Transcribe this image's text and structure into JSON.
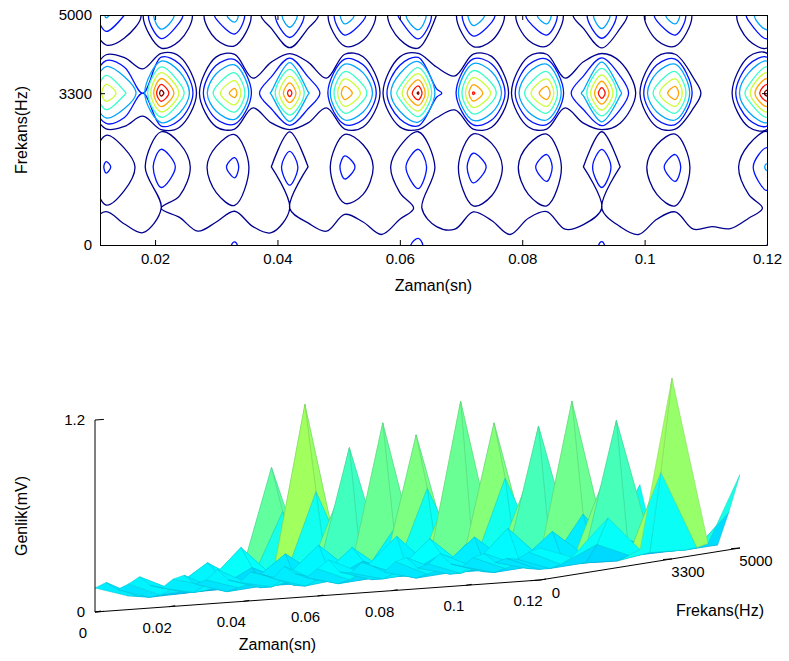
{
  "chart_data": [
    {
      "type": "contour",
      "x_label": "Zaman(sn)",
      "y_label": "Frekans(Hz)",
      "x": [
        0,
        0.003,
        0.006,
        0.009,
        0.012,
        0.015,
        0.018,
        0.021,
        0.024,
        0.027,
        0.03,
        0.033,
        0.036,
        0.039,
        0.042,
        0.045,
        0.048,
        0.051,
        0.054,
        0.057,
        0.06,
        0.063,
        0.066,
        0.069,
        0.072,
        0.075,
        0.078,
        0.081,
        0.084,
        0.087,
        0.09,
        0.093,
        0.096,
        0.099,
        0.102,
        0.105,
        0.108,
        0.111,
        0.114,
        0.117,
        0.12
      ],
      "y": [
        0,
        800,
        1700,
        2500,
        3300,
        4200,
        5000
      ],
      "z": [
        [
          0.15,
          0.18,
          0.13,
          0.16,
          0.2,
          0.14,
          0.12,
          0.17,
          0.19,
          0.13,
          0.15,
          0.21,
          0.14,
          0.12,
          0.18,
          0.16,
          0.13,
          0.2,
          0.15,
          0.12,
          0.17,
          0.22,
          0.14,
          0.13,
          0.19,
          0.16,
          0.12,
          0.18,
          0.2,
          0.13,
          0.15,
          0.21,
          0.14,
          0.12,
          0.17,
          0.19,
          0.13,
          0.15,
          0.14,
          0.18,
          0.2
        ],
        [
          0.07,
          0.06,
          0.05,
          0.06,
          0.09,
          0.07,
          0.06,
          0.1,
          0.07,
          0.05,
          0.07,
          0.09,
          0.06,
          0.06,
          0.1,
          0.06,
          0.05,
          0.08,
          0.07,
          0.05,
          0.07,
          0.11,
          0.06,
          0.06,
          0.09,
          0.07,
          0.05,
          0.07,
          0.09,
          0.06,
          0.06,
          0.1,
          0.06,
          0.05,
          0.07,
          0.09,
          0.06,
          0.05,
          0.05,
          0.07,
          0.11
        ],
        [
          0.04,
          0.04,
          0.04,
          0.06,
          0.22,
          0.14,
          0.07,
          0.3,
          0.17,
          0.05,
          0.15,
          0.24,
          0.06,
          0.1,
          0.28,
          0.1,
          0.06,
          0.25,
          0.16,
          0.05,
          0.15,
          0.3,
          0.08,
          0.06,
          0.27,
          0.17,
          0.05,
          0.16,
          0.26,
          0.06,
          0.1,
          0.3,
          0.1,
          0.05,
          0.16,
          0.26,
          0.06,
          0.05,
          0.05,
          0.16,
          0.32
        ],
        [
          0.03,
          0.03,
          0.03,
          0.04,
          0.08,
          0.06,
          0.04,
          0.09,
          0.06,
          0.03,
          0.06,
          0.08,
          0.04,
          0.05,
          0.09,
          0.05,
          0.04,
          0.08,
          0.06,
          0.03,
          0.06,
          0.09,
          0.04,
          0.04,
          0.08,
          0.06,
          0.03,
          0.06,
          0.08,
          0.04,
          0.05,
          0.09,
          0.05,
          0.03,
          0.06,
          0.08,
          0.04,
          0.03,
          0.03,
          0.06,
          0.09
        ],
        [
          0.03,
          0.03,
          0.04,
          0.13,
          0.75,
          0.47,
          0.2,
          1.13,
          0.58,
          0.06,
          0.53,
          0.84,
          0.14,
          0.31,
          0.98,
          0.31,
          0.14,
          0.89,
          0.55,
          0.06,
          0.53,
          1.08,
          0.22,
          0.15,
          0.93,
          0.58,
          0.06,
          0.55,
          0.89,
          0.14,
          0.32,
          1.03,
          0.32,
          0.06,
          0.55,
          0.89,
          0.14,
          0.04,
          0.05,
          0.55,
          1.13
        ],
        [
          0.03,
          0.03,
          0.03,
          0.03,
          0.05,
          0.04,
          0.03,
          0.06,
          0.04,
          0.03,
          0.04,
          0.05,
          0.03,
          0.03,
          0.06,
          0.03,
          0.03,
          0.05,
          0.04,
          0.03,
          0.04,
          0.06,
          0.03,
          0.03,
          0.05,
          0.04,
          0.03,
          0.04,
          0.05,
          0.03,
          0.03,
          0.06,
          0.03,
          0.03,
          0.04,
          0.05,
          0.03,
          0.03,
          0.03,
          0.04,
          0.06
        ],
        [
          0.03,
          0.03,
          0.03,
          0.06,
          0.32,
          0.2,
          0.09,
          0.45,
          0.24,
          0.04,
          0.22,
          0.36,
          0.07,
          0.14,
          0.42,
          0.14,
          0.07,
          0.38,
          0.23,
          0.04,
          0.22,
          0.46,
          0.1,
          0.07,
          0.4,
          0.24,
          0.04,
          0.23,
          0.38,
          0.07,
          0.14,
          0.44,
          0.14,
          0.04,
          0.23,
          0.38,
          0.07,
          0.03,
          0.03,
          0.23,
          0.46
        ]
      ],
      "levels": [
        0.1,
        0.2,
        0.3,
        0.45,
        0.6,
        0.75,
        0.9,
        1.05
      ],
      "xlim": [
        0.011,
        0.12
      ],
      "xticks": [
        0.02,
        0.04,
        0.06,
        0.08,
        0.1,
        0.12
      ],
      "ylim": [
        0,
        5000
      ],
      "yticks": [
        0,
        3300,
        5000
      ]
    },
    {
      "type": "surface",
      "x_label": "Zaman(sn)",
      "y_label": "Frekans(Hz)",
      "z_label": "Genlik(mV)",
      "x": [
        0,
        0.003,
        0.006,
        0.009,
        0.012,
        0.015,
        0.018,
        0.021,
        0.024,
        0.027,
        0.03,
        0.033,
        0.036,
        0.039,
        0.042,
        0.045,
        0.048,
        0.051,
        0.054,
        0.057,
        0.06,
        0.063,
        0.066,
        0.069,
        0.072,
        0.075,
        0.078,
        0.081,
        0.084,
        0.087,
        0.09,
        0.093,
        0.096,
        0.099,
        0.102,
        0.105,
        0.108,
        0.111,
        0.114,
        0.117,
        0.12
      ],
      "y": [
        0,
        800,
        1700,
        2500,
        3300,
        4200,
        5000
      ],
      "z": [
        [
          0.15,
          0.18,
          0.13,
          0.16,
          0.2,
          0.14,
          0.12,
          0.17,
          0.19,
          0.13,
          0.15,
          0.21,
          0.14,
          0.12,
          0.18,
          0.16,
          0.13,
          0.2,
          0.15,
          0.12,
          0.17,
          0.22,
          0.14,
          0.13,
          0.19,
          0.16,
          0.12,
          0.18,
          0.2,
          0.13,
          0.15,
          0.21,
          0.14,
          0.12,
          0.17,
          0.19,
          0.13,
          0.15,
          0.14,
          0.18,
          0.2
        ],
        [
          0.07,
          0.06,
          0.05,
          0.06,
          0.09,
          0.07,
          0.06,
          0.1,
          0.07,
          0.05,
          0.07,
          0.09,
          0.06,
          0.06,
          0.1,
          0.06,
          0.05,
          0.08,
          0.07,
          0.05,
          0.07,
          0.11,
          0.06,
          0.06,
          0.09,
          0.07,
          0.05,
          0.07,
          0.09,
          0.06,
          0.06,
          0.1,
          0.06,
          0.05,
          0.07,
          0.09,
          0.06,
          0.05,
          0.05,
          0.07,
          0.11
        ],
        [
          0.04,
          0.04,
          0.04,
          0.06,
          0.22,
          0.14,
          0.07,
          0.3,
          0.17,
          0.05,
          0.15,
          0.24,
          0.06,
          0.1,
          0.28,
          0.1,
          0.06,
          0.25,
          0.16,
          0.05,
          0.15,
          0.3,
          0.08,
          0.06,
          0.27,
          0.17,
          0.05,
          0.16,
          0.26,
          0.06,
          0.1,
          0.3,
          0.1,
          0.05,
          0.16,
          0.26,
          0.06,
          0.05,
          0.05,
          0.16,
          0.32
        ],
        [
          0.03,
          0.03,
          0.03,
          0.04,
          0.08,
          0.06,
          0.04,
          0.09,
          0.06,
          0.03,
          0.06,
          0.08,
          0.04,
          0.05,
          0.09,
          0.05,
          0.04,
          0.08,
          0.06,
          0.03,
          0.06,
          0.09,
          0.04,
          0.04,
          0.08,
          0.06,
          0.03,
          0.06,
          0.08,
          0.04,
          0.05,
          0.09,
          0.05,
          0.03,
          0.06,
          0.08,
          0.04,
          0.03,
          0.03,
          0.06,
          0.09
        ],
        [
          0.03,
          0.03,
          0.04,
          0.13,
          0.75,
          0.47,
          0.2,
          1.13,
          0.58,
          0.06,
          0.53,
          0.84,
          0.14,
          0.31,
          0.98,
          0.31,
          0.14,
          0.89,
          0.55,
          0.06,
          0.53,
          1.08,
          0.22,
          0.15,
          0.93,
          0.58,
          0.06,
          0.55,
          0.89,
          0.14,
          0.32,
          1.03,
          0.32,
          0.06,
          0.55,
          0.89,
          0.14,
          0.04,
          0.05,
          0.55,
          1.13
        ],
        [
          0.03,
          0.03,
          0.03,
          0.03,
          0.05,
          0.04,
          0.03,
          0.06,
          0.04,
          0.03,
          0.04,
          0.05,
          0.03,
          0.03,
          0.06,
          0.03,
          0.03,
          0.05,
          0.04,
          0.03,
          0.04,
          0.06,
          0.03,
          0.03,
          0.05,
          0.04,
          0.03,
          0.04,
          0.05,
          0.03,
          0.03,
          0.06,
          0.03,
          0.03,
          0.04,
          0.05,
          0.03,
          0.03,
          0.03,
          0.04,
          0.06
        ],
        [
          0.03,
          0.03,
          0.03,
          0.06,
          0.32,
          0.2,
          0.09,
          0.45,
          0.24,
          0.04,
          0.22,
          0.36,
          0.07,
          0.14,
          0.42,
          0.14,
          0.07,
          0.38,
          0.23,
          0.04,
          0.22,
          0.46,
          0.1,
          0.07,
          0.4,
          0.24,
          0.04,
          0.23,
          0.38,
          0.07,
          0.14,
          0.44,
          0.14,
          0.04,
          0.23,
          0.38,
          0.07,
          0.03,
          0.03,
          0.23,
          0.46
        ]
      ],
      "xlim": [
        0,
        0.12
      ],
      "xticks": [
        0,
        0.02,
        0.04,
        0.06,
        0.08,
        0.1,
        0.12
      ],
      "ylim": [
        0,
        5000
      ],
      "yticks": [
        0,
        3300,
        5000
      ],
      "zlim": [
        0,
        1.2
      ],
      "zticks": [
        0,
        1.2
      ]
    }
  ]
}
